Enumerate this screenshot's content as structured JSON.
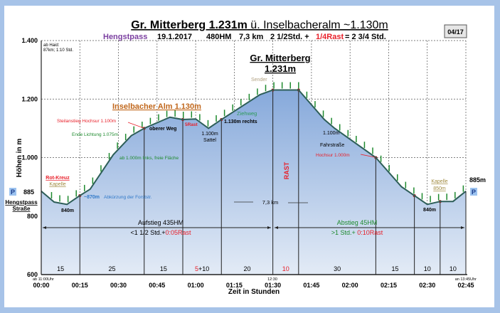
{
  "header": {
    "title_bold": "Gr. Mitterberg 1.231m",
    "title_rest": " ü. Inselbacheralm ~1.130m",
    "start": "Hengstpass",
    "date": "19.1.2017",
    "hm": "480HM",
    "km": "7,3 km",
    "time": "2 1/2Std. +",
    "rast": "1/4Rast",
    "total": "= 2 3/4 Std.",
    "page_badge": "04/17"
  },
  "colors": {
    "line": "#2d5e58",
    "fill_top": "#86a9db",
    "fill_bottom": "#e3ebf6",
    "accent_red": "#e8202a",
    "green": "#1e8a2e",
    "brown": "#c0661a"
  },
  "chart_data": {
    "type": "area",
    "ylabel": "Höhen in m",
    "xlabel": "Zeit in Stunden",
    "ylim": [
      600,
      1400
    ],
    "xlim": [
      "00:00",
      "02:45"
    ],
    "y_ticks": [
      "600",
      "800",
      "1.000",
      "1.200",
      "1.400"
    ],
    "x_ticks": [
      "00:00",
      "00:15",
      "00:30",
      "00:45",
      "01:00",
      "01:15",
      "01:30",
      "01:45",
      "02:00",
      "02:15",
      "02:30",
      "02:45"
    ],
    "profile": [
      {
        "t": 0,
        "h": 885
      },
      {
        "t": 5,
        "h": 848
      },
      {
        "t": 10,
        "h": 840
      },
      {
        "t": 15,
        "h": 870
      },
      {
        "t": 19,
        "h": 892
      },
      {
        "t": 28,
        "h": 1010
      },
      {
        "t": 35,
        "h": 1075
      },
      {
        "t": 40,
        "h": 1100
      },
      {
        "t": 50,
        "h": 1138
      },
      {
        "t": 55,
        "h": 1130
      },
      {
        "t": 60,
        "h": 1132
      },
      {
        "t": 65,
        "h": 1100
      },
      {
        "t": 70,
        "h": 1130
      },
      {
        "t": 85,
        "h": 1215
      },
      {
        "t": 90,
        "h": 1231
      },
      {
        "t": 100,
        "h": 1231
      },
      {
        "t": 110,
        "h": 1130
      },
      {
        "t": 114,
        "h": 1100
      },
      {
        "t": 130,
        "h": 1000
      },
      {
        "t": 140,
        "h": 900
      },
      {
        "t": 145,
        "h": 870
      },
      {
        "t": 150,
        "h": 840
      },
      {
        "t": 155,
        "h": 850
      },
      {
        "t": 160,
        "h": 850
      },
      {
        "t": 165,
        "h": 885
      }
    ],
    "segment_marks_min": [
      15,
      40,
      55,
      70,
      90,
      100,
      130,
      145,
      155
    ],
    "segments": [
      {
        "label": "15",
        "rest": false
      },
      {
        "label": "25",
        "rest": false
      },
      {
        "label": "15",
        "rest": false
      },
      {
        "label": "5",
        "label2": "+10",
        "rest": "partial"
      },
      {
        "label": "20",
        "rest": false
      },
      {
        "label": "10",
        "rest": true
      },
      {
        "label": "30",
        "rest": false
      },
      {
        "label": "15",
        "rest": false
      },
      {
        "label": "10",
        "rest": false
      },
      {
        "label": "10",
        "rest": false
      }
    ],
    "annotations": {
      "ab_haid": "ab Haid:",
      "ab_haid2": "87km; 1:10 Std.",
      "summit": "Gr. Mitterberg",
      "summit_h": "1.231m",
      "sender": "Sender",
      "alm": "Inselbacher Alm 1.130m",
      "steilanstieg": "Steilanstieg Hochsur 1.100m",
      "lichtung": "Ende Lichtung 1.075m",
      "oberer_weg": "oberer Weg",
      "rast5": "5Rast",
      "sattel_h": "1.100m",
      "sattel": "Sattel",
      "rechts": "1.130m rechts",
      "ziehweg": "Ziehweg",
      "links": "ab 1.000m links, freie Fläche",
      "rotkreuz": "Rot-Kreuz",
      "kapelle": "Kapelle",
      "p885": "885",
      "parking": "P",
      "hengstpass": "Hengstpass",
      "strasse": "Straße",
      "h840": "840m",
      "abkuerzung_h": "~870m",
      "abkuerzung": "Abkürzung der Forststr.",
      "rast": "RAST",
      "km": "7,3 km",
      "h1100": "1.100m",
      "fahrstrasse": "Fahrstraße",
      "hochsur": "Hochsur 1.000m",
      "kapelle2": "Kapelle",
      "kapelle2_h": "850m",
      "h840b": "840m",
      "end_h": "885m",
      "aufstieg": "Aufstieg 435HM",
      "aufstieg_time": "<1 1/2 Std.+",
      "aufstieg_rast": "0:05Rast",
      "abstieg": "Abstieg 45HM",
      "abstieg_time": ">1 Std.+ ",
      "abstieg_rast": "0:10Rast",
      "start_time": "ab 11:00Uhr",
      "mid_time": "12:30",
      "end_time": "an 13:45Uhr"
    }
  }
}
